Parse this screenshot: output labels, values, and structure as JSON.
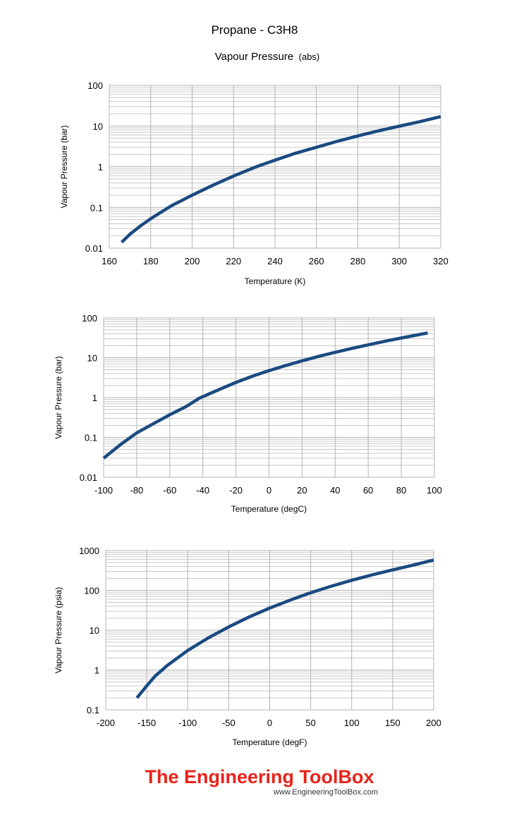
{
  "title": "Propane - C3H8",
  "subtitle_main": "Vapour Pressure",
  "subtitle_suffix": "(abs)",
  "colors": {
    "series": "#1a4a80",
    "grid": "#c8c8c8",
    "brand": "#e8231b"
  },
  "brand": {
    "name": "The Engineering ToolBox",
    "url": "www.EngineeringToolBox.com"
  },
  "chart_data": [
    {
      "type": "line",
      "xlabel": "Temperature  (K)",
      "ylabel": "Vapour Pressure (bar)",
      "xlim": [
        160,
        320
      ],
      "ylim": [
        0.01,
        100
      ],
      "yscale": "log",
      "grid": true,
      "x_ticks": [
        "160",
        "180",
        "200",
        "220",
        "240",
        "260",
        "280",
        "300",
        "320"
      ],
      "y_ticks": [
        "0.01",
        "0.1",
        "1",
        "10",
        "100"
      ],
      "series": [
        {
          "x": [
            166,
            170,
            175,
            180,
            190,
            200,
            210,
            220,
            231,
            240,
            250,
            260,
            270,
            280,
            290,
            300,
            310,
            320
          ],
          "y": [
            0.014,
            0.022,
            0.035,
            0.053,
            0.11,
            0.2,
            0.35,
            0.59,
            1.0,
            1.45,
            2.15,
            3.0,
            4.2,
            5.7,
            7.6,
            9.9,
            12.8,
            17
          ]
        }
      ]
    },
    {
      "type": "line",
      "xlabel": "Temperature  (degC)",
      "ylabel": "Vapour Pressure (bar)",
      "xlim": [
        -100,
        100
      ],
      "ylim": [
        0.01,
        100
      ],
      "yscale": "log",
      "grid": true,
      "x_ticks": [
        "-100",
        "-80",
        "-60",
        "-40",
        "-20",
        "0",
        "20",
        "40",
        "60",
        "80",
        "100"
      ],
      "y_ticks": [
        "0.01",
        "0.1",
        "1",
        "10",
        "100"
      ],
      "series": [
        {
          "x": [
            -100,
            -90,
            -80,
            -70,
            -60,
            -50,
            -42,
            -30,
            -20,
            -10,
            0,
            10,
            20,
            30,
            40,
            50,
            60,
            70,
            80,
            90,
            96
          ],
          "y": [
            0.03,
            0.065,
            0.13,
            0.22,
            0.37,
            0.6,
            0.97,
            1.6,
            2.4,
            3.45,
            4.75,
            6.35,
            8.35,
            10.8,
            13.7,
            17.1,
            21.1,
            25.8,
            31.3,
            37.6,
            42
          ]
        }
      ]
    },
    {
      "type": "line",
      "xlabel": "Temperature  (degF)",
      "ylabel": "Vapour Pressure (psia)",
      "xlim": [
        -200,
        200
      ],
      "ylim": [
        0.1,
        1000
      ],
      "yscale": "log",
      "grid": true,
      "x_ticks": [
        "-200",
        "-150",
        "-100",
        "-50",
        "0",
        "50",
        "100",
        "150",
        "200"
      ],
      "y_ticks": [
        "0.1",
        "1",
        "10",
        "100",
        "1000"
      ],
      "series": [
        {
          "x": [
            -162,
            -150,
            -140,
            -125,
            -100,
            -75,
            -50,
            -25,
            0,
            25,
            50,
            75,
            100,
            125,
            150,
            175,
            200
          ],
          "y": [
            0.2,
            0.4,
            0.7,
            1.3,
            3.1,
            6.4,
            12.1,
            21.5,
            36,
            57,
            87,
            127,
            179,
            245,
            328,
            430,
            580
          ]
        }
      ]
    }
  ]
}
